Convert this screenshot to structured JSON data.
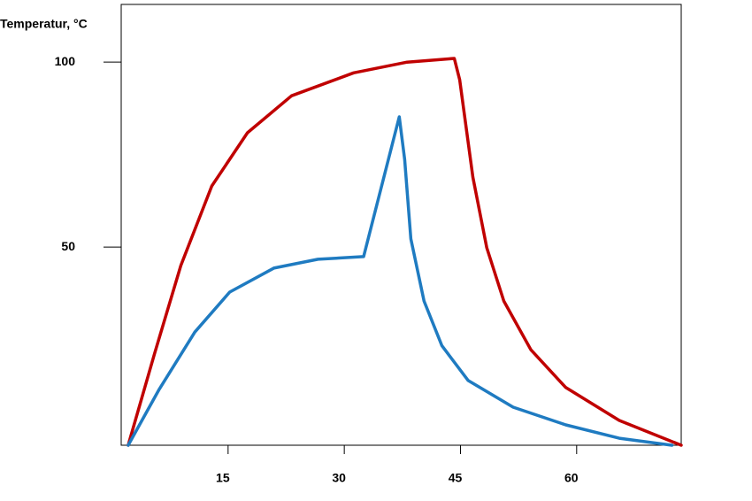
{
  "chart_data": {
    "type": "line",
    "y_label": "Temperatur, °C",
    "xlim": [
      1.2,
      73.5
    ],
    "xticks": [
      15,
      30,
      45,
      60
    ],
    "ylim": [
      -3.6,
      115.6
    ],
    "yticks": [
      50,
      100
    ],
    "series": [
      {
        "color": "#c00000",
        "x": [
          2.1,
          5.5,
          8.9,
          12.9,
          17.5,
          23.2,
          31.2,
          38.1,
          44.2,
          44.9,
          46.6,
          48.4,
          50.6,
          54.1,
          58.6,
          65.5,
          73.5
        ],
        "values": [
          -3.6,
          21.1,
          45.0,
          66.5,
          80.9,
          90.9,
          97.1,
          100.0,
          101.0,
          95.2,
          68.9,
          49.8,
          35.4,
          22.2,
          12.0,
          3.1,
          -3.6
        ]
      },
      {
        "color": "#1f7bc1",
        "x": [
          2.1,
          6.1,
          10.7,
          15.2,
          20.9,
          26.6,
          32.5,
          37.1,
          37.8,
          38.6,
          40.3,
          42.6,
          46.0,
          51.8,
          58.6,
          65.5,
          72.3
        ],
        "values": [
          -3.6,
          11.5,
          27.0,
          37.8,
          44.3,
          46.7,
          47.4,
          85.2,
          73.7,
          52.2,
          35.4,
          23.3,
          13.9,
          6.7,
          1.9,
          -1.7,
          -3.6
        ]
      }
    ]
  }
}
